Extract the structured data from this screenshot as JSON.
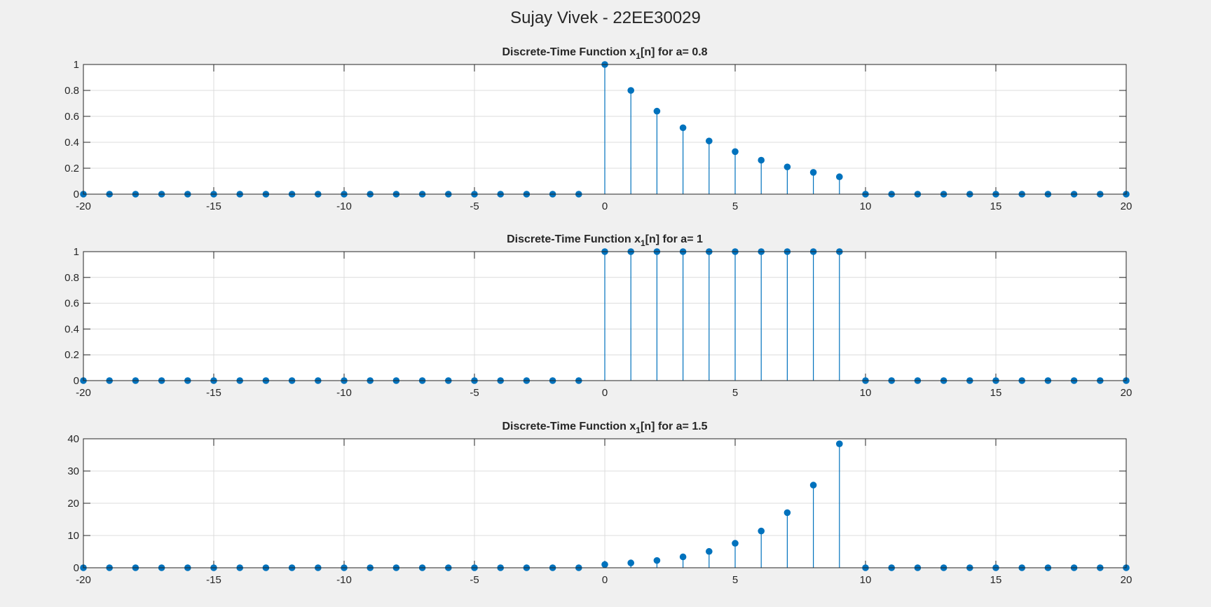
{
  "figure_title": "Sujay Vivek - 22EE30029",
  "colors": {
    "background": "#f0f0f0",
    "axes_bg": "#ffffff",
    "stem": "#0072bd",
    "grid": "#dcdcdc",
    "text": "#262626"
  },
  "chart_data": [
    {
      "type": "stem",
      "title_main": "Discrete-Time Function x",
      "title_sub": "1",
      "title_rest": "[n] for a= 0.8",
      "xlabel": "",
      "ylabel": "",
      "xlim": [
        -20,
        20
      ],
      "ylim": [
        0,
        1
      ],
      "xticks": [
        -20,
        -15,
        -10,
        -5,
        0,
        5,
        10,
        15,
        20
      ],
      "yticks": [
        0,
        0.2,
        0.4,
        0.6,
        0.8,
        1
      ],
      "ytick_labels": [
        "0",
        "0.2",
        "0.4",
        "0.6",
        "0.8",
        "1"
      ],
      "grid": true,
      "x": [
        -20,
        -19,
        -18,
        -17,
        -16,
        -15,
        -14,
        -13,
        -12,
        -11,
        -10,
        -9,
        -8,
        -7,
        -6,
        -5,
        -4,
        -3,
        -2,
        -1,
        0,
        1,
        2,
        3,
        4,
        5,
        6,
        7,
        8,
        9,
        10,
        11,
        12,
        13,
        14,
        15,
        16,
        17,
        18,
        19,
        20
      ],
      "y": [
        0,
        0,
        0,
        0,
        0,
        0,
        0,
        0,
        0,
        0,
        0,
        0,
        0,
        0,
        0,
        0,
        0,
        0,
        0,
        0,
        1,
        0.8,
        0.64,
        0.512,
        0.41,
        0.328,
        0.262,
        0.21,
        0.168,
        0.134,
        0,
        0,
        0,
        0,
        0,
        0,
        0,
        0,
        0,
        0,
        0
      ]
    },
    {
      "type": "stem",
      "title_main": "Discrete-Time Function x",
      "title_sub": "1",
      "title_rest": "[n] for a= 1",
      "xlabel": "",
      "ylabel": "",
      "xlim": [
        -20,
        20
      ],
      "ylim": [
        0,
        1
      ],
      "xticks": [
        -20,
        -15,
        -10,
        -5,
        0,
        5,
        10,
        15,
        20
      ],
      "yticks": [
        0,
        0.2,
        0.4,
        0.6,
        0.8,
        1
      ],
      "ytick_labels": [
        "0",
        "0.2",
        "0.4",
        "0.6",
        "0.8",
        "1"
      ],
      "grid": true,
      "x": [
        -20,
        -19,
        -18,
        -17,
        -16,
        -15,
        -14,
        -13,
        -12,
        -11,
        -10,
        -9,
        -8,
        -7,
        -6,
        -5,
        -4,
        -3,
        -2,
        -1,
        0,
        1,
        2,
        3,
        4,
        5,
        6,
        7,
        8,
        9,
        10,
        11,
        12,
        13,
        14,
        15,
        16,
        17,
        18,
        19,
        20
      ],
      "y": [
        0,
        0,
        0,
        0,
        0,
        0,
        0,
        0,
        0,
        0,
        0,
        0,
        0,
        0,
        0,
        0,
        0,
        0,
        0,
        0,
        1,
        1,
        1,
        1,
        1,
        1,
        1,
        1,
        1,
        1,
        0,
        0,
        0,
        0,
        0,
        0,
        0,
        0,
        0,
        0,
        0
      ]
    },
    {
      "type": "stem",
      "title_main": "Discrete-Time Function x",
      "title_sub": "1",
      "title_rest": "[n] for a= 1.5",
      "xlabel": "",
      "ylabel": "",
      "xlim": [
        -20,
        20
      ],
      "ylim": [
        0,
        40
      ],
      "xticks": [
        -20,
        -15,
        -10,
        -5,
        0,
        5,
        10,
        15,
        20
      ],
      "yticks": [
        0,
        10,
        20,
        30,
        40
      ],
      "ytick_labels": [
        "0",
        "10",
        "20",
        "30",
        "40"
      ],
      "grid": true,
      "x": [
        -20,
        -19,
        -18,
        -17,
        -16,
        -15,
        -14,
        -13,
        -12,
        -11,
        -10,
        -9,
        -8,
        -7,
        -6,
        -5,
        -4,
        -3,
        -2,
        -1,
        0,
        1,
        2,
        3,
        4,
        5,
        6,
        7,
        8,
        9,
        10,
        11,
        12,
        13,
        14,
        15,
        16,
        17,
        18,
        19,
        20
      ],
      "y": [
        0,
        0,
        0,
        0,
        0,
        0,
        0,
        0,
        0,
        0,
        0,
        0,
        0,
        0,
        0,
        0,
        0,
        0,
        0,
        0,
        1,
        1.5,
        2.25,
        3.375,
        5.06,
        7.59,
        11.39,
        17.09,
        25.63,
        38.44,
        0,
        0,
        0,
        0,
        0,
        0,
        0,
        0,
        0,
        0,
        0
      ]
    }
  ]
}
